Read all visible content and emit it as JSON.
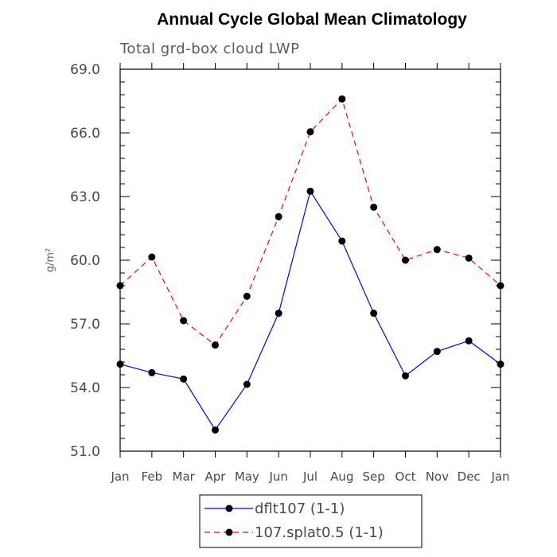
{
  "chart_data": {
    "type": "line",
    "title": "Annual Cycle Global Mean Climatology",
    "subtitle": "Total grd-box cloud LWP",
    "ylabel": "g/m²",
    "xlabel": "",
    "categories": [
      "Jan",
      "Feb",
      "Mar",
      "Apr",
      "May",
      "Jun",
      "Jul",
      "Aug",
      "Sep",
      "Oct",
      "Nov",
      "Dec",
      "Jan"
    ],
    "ylim": [
      51.0,
      69.0
    ],
    "yticks": [
      "51.0",
      "54.0",
      "57.0",
      "60.0",
      "63.0",
      "66.0",
      "69.0"
    ],
    "grid": false,
    "legend_position": "bottom",
    "series": [
      {
        "name": "dflt107 (1-1)",
        "color": "#0000ff",
        "dash": "solid",
        "marker": "dot",
        "values": [
          55.1,
          54.7,
          54.4,
          52.0,
          54.15,
          57.5,
          63.25,
          60.9,
          57.5,
          54.55,
          55.7,
          56.2,
          55.1
        ]
      },
      {
        "name": "107.splat0.5 (1-1)",
        "color": "#ff0000",
        "dash": "dashed",
        "marker": "dot",
        "values": [
          58.8,
          60.15,
          57.15,
          56.0,
          58.3,
          62.05,
          66.05,
          67.6,
          62.5,
          60.0,
          60.5,
          60.1,
          58.8
        ]
      }
    ]
  }
}
